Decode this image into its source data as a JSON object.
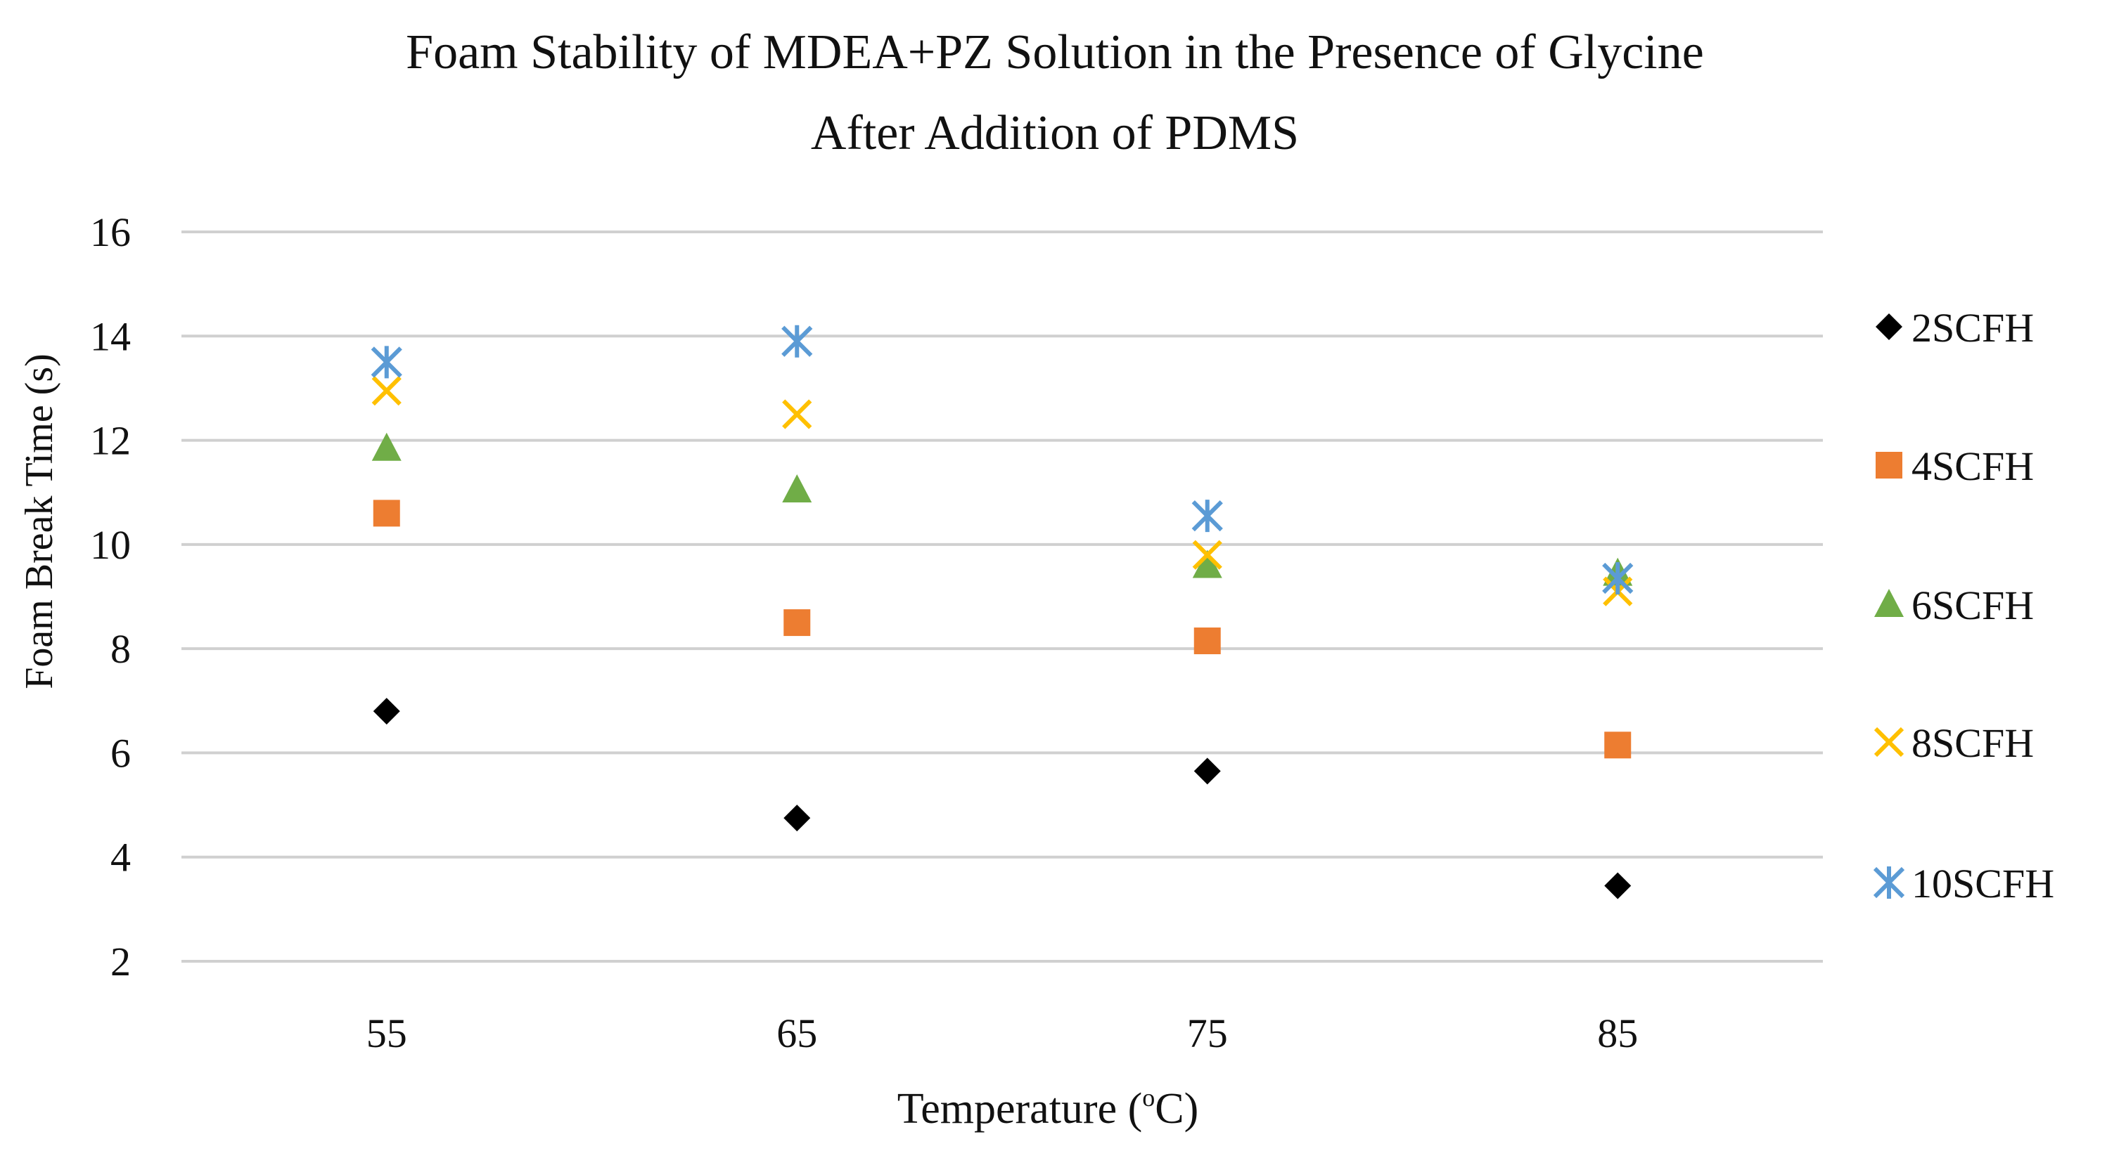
{
  "chart_data": {
    "type": "scatter",
    "title": "Foam Stability of MDEA+PZ Solution in the Presence of Glycine",
    "subtitle": "After Addition of PDMS",
    "xlabel": "Temperature (°C)",
    "xlabel_parts": {
      "prefix": "Temperature (",
      "degree": "o",
      "suffix": "C)"
    },
    "ylabel": "Foam Break Time (s)",
    "categories": [
      "55",
      "65",
      "75",
      "85"
    ],
    "ylim": [
      2,
      16
    ],
    "y_ticks": [
      "2",
      "4",
      "6",
      "8",
      "10",
      "12",
      "14",
      "16"
    ],
    "grid": true,
    "legend_position": "right",
    "series": [
      {
        "name": "2SCFH",
        "marker": "diamond",
        "color": "#000000",
        "values": [
          6.8,
          4.75,
          5.65,
          3.45
        ]
      },
      {
        "name": "4SCFH",
        "marker": "square",
        "color": "#ED7D31",
        "values": [
          10.6,
          8.5,
          8.15,
          6.15
        ]
      },
      {
        "name": "6SCFH",
        "marker": "triangle",
        "color": "#70AD47",
        "values": [
          11.85,
          11.05,
          9.6,
          9.45
        ]
      },
      {
        "name": "8SCFH",
        "marker": "x",
        "color": "#FFC000",
        "values": [
          12.95,
          12.5,
          9.8,
          9.1
        ]
      },
      {
        "name": "10SCFH",
        "marker": "star",
        "color": "#5B9BD5",
        "values": [
          13.5,
          13.9,
          10.55,
          9.35
        ]
      }
    ]
  }
}
